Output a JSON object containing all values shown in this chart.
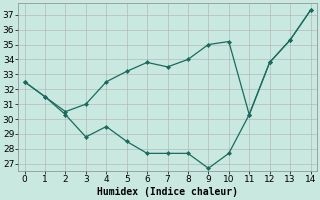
{
  "line1_x": [
    0,
    1,
    2,
    3,
    4,
    5,
    6,
    7,
    8,
    9,
    10,
    11,
    12,
    13,
    14
  ],
  "line1_y": [
    32.5,
    31.5,
    30.5,
    31.0,
    32.5,
    33.2,
    33.8,
    33.5,
    34.0,
    35.0,
    35.2,
    30.3,
    33.8,
    35.3,
    37.3
  ],
  "line2_x": [
    0,
    1,
    2,
    3,
    4,
    5,
    6,
    7,
    8,
    9,
    10,
    11,
    12,
    13,
    14
  ],
  "line2_y": [
    32.5,
    31.5,
    30.3,
    28.8,
    29.5,
    28.5,
    27.7,
    27.7,
    27.7,
    26.7,
    27.7,
    30.3,
    33.8,
    35.3,
    37.3
  ],
  "color": "#1a6b5e",
  "bg_color": "#c8e8e0",
  "grid_color": "#b0b0b0",
  "xlabel": "Humidex (Indice chaleur)",
  "ylim": [
    26.5,
    37.8
  ],
  "xlim": [
    -0.3,
    14.3
  ],
  "yticks": [
    27,
    28,
    29,
    30,
    31,
    32,
    33,
    34,
    35,
    36,
    37
  ],
  "xticks": [
    0,
    1,
    2,
    3,
    4,
    5,
    6,
    7,
    8,
    9,
    10,
    11,
    12,
    13,
    14
  ],
  "xlabel_fontsize": 7,
  "tick_fontsize": 6.5
}
